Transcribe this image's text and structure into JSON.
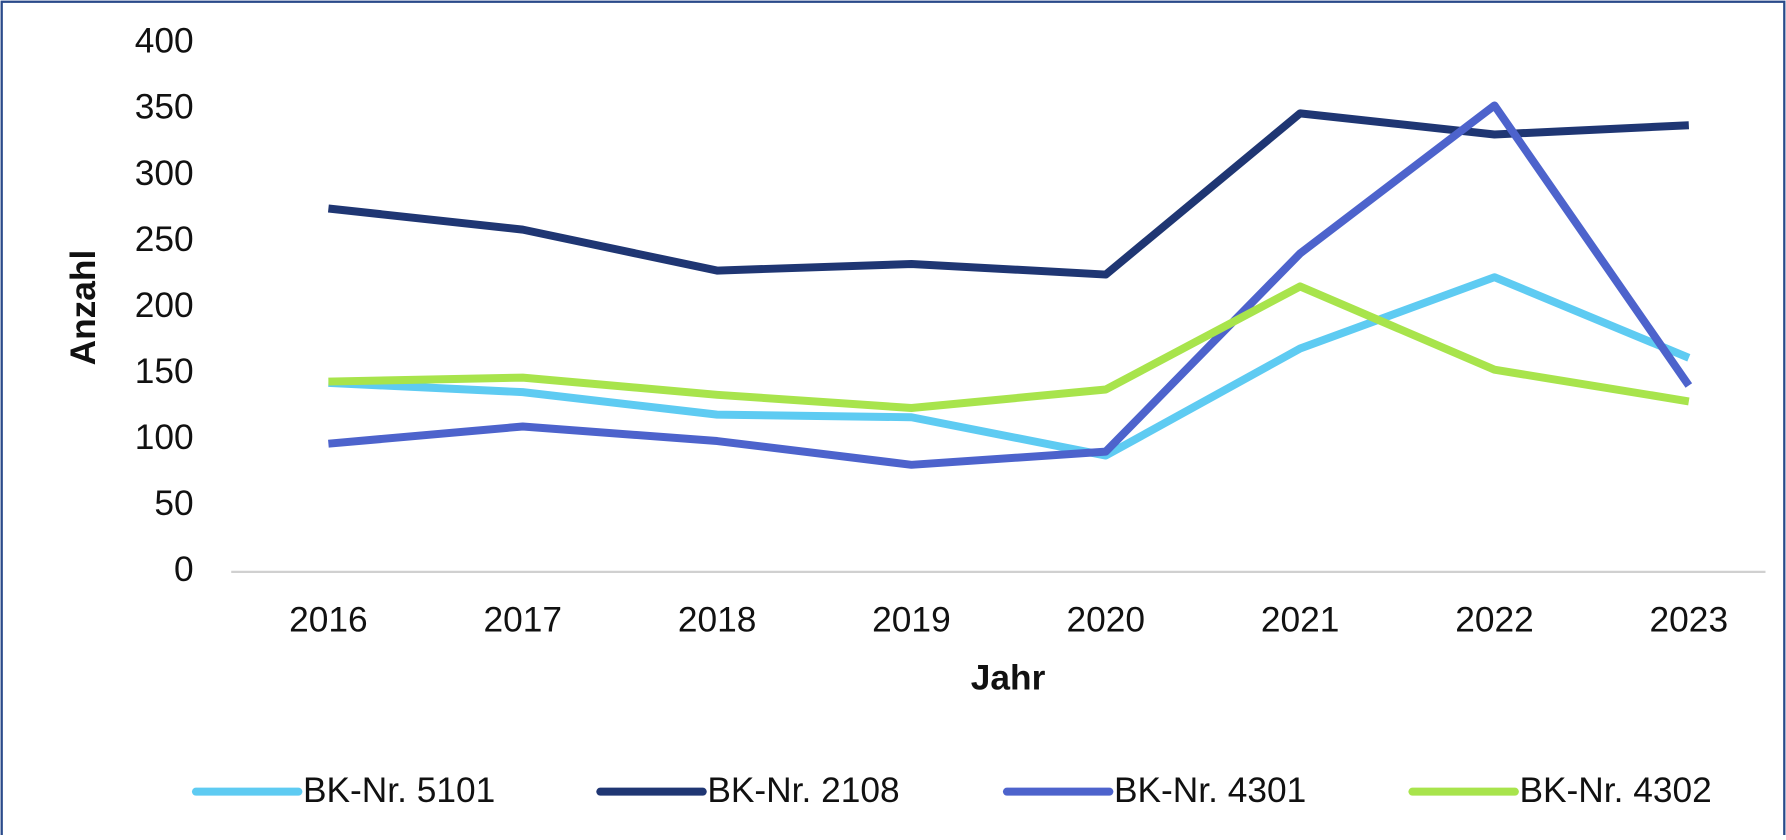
{
  "chart_data": {
    "type": "line",
    "x_label": "Jahr",
    "y_label": "Anzahl",
    "categories": [
      "2016",
      "2017",
      "2018",
      "2019",
      "2020",
      "2021",
      "2022",
      "2023"
    ],
    "series": [
      {
        "name": "BK-Nr. 5101",
        "color": "#5ecbf2",
        "values": [
          143,
          136,
          119,
          117,
          88,
          169,
          223,
          162
        ]
      },
      {
        "name": "BK-Nr. 2108",
        "color": "#1f3673",
        "values": [
          275,
          259,
          228,
          233,
          225,
          347,
          331,
          338
        ]
      },
      {
        "name": "BK-Nr. 4301",
        "color": "#4d63cc",
        "values": [
          97,
          110,
          99,
          81,
          91,
          241,
          353,
          141
        ]
      },
      {
        "name": "BK-Nr. 4302",
        "color": "#a8e44c",
        "values": [
          144,
          147,
          134,
          124,
          138,
          216,
          153,
          129
        ]
      }
    ],
    "ylim": [
      0,
      400
    ],
    "yticks": [
      0,
      50,
      100,
      150,
      200,
      250,
      300,
      350,
      400
    ],
    "grid": false,
    "legend": "bottom"
  }
}
